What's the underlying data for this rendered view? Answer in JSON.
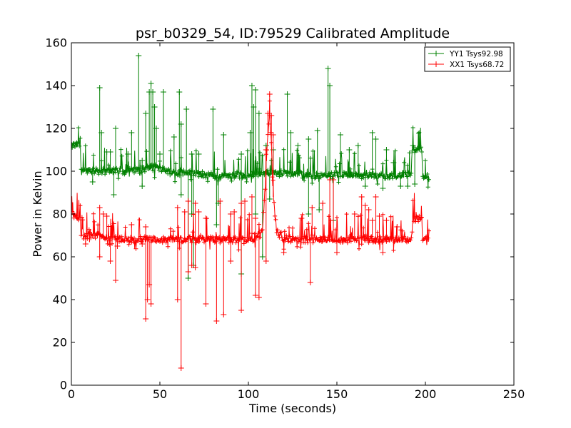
{
  "chart_data": {
    "type": "line",
    "title": "psr_b0329_54, ID:79529 Calibrated Amplitude",
    "xlabel": "Time (seconds)",
    "ylabel": "Power in Kelvin",
    "xlim": [
      0,
      250
    ],
    "ylim": [
      0,
      160
    ],
    "xticks": [
      "0",
      "50",
      "100",
      "150",
      "200",
      "250"
    ],
    "yticks": [
      "0",
      "20",
      "40",
      "60",
      "80",
      "100",
      "120",
      "140",
      "160"
    ],
    "grid": false,
    "legend_position": "top-right",
    "marker": "plus",
    "series": [
      {
        "name": "YY1 Tsys92.98",
        "color": "#008000",
        "baseline": [
          [
            0,
            112
          ],
          [
            5,
            112
          ],
          [
            5.5,
            101
          ],
          [
            14,
            100
          ],
          [
            20,
            100
          ],
          [
            30,
            100
          ],
          [
            40,
            101
          ],
          [
            48,
            102
          ],
          [
            55,
            100
          ],
          [
            68,
            99
          ],
          [
            80,
            98
          ],
          [
            95,
            98
          ],
          [
            110,
            99
          ],
          [
            120,
            99
          ],
          [
            135,
            98
          ],
          [
            150,
            98
          ],
          [
            165,
            98
          ],
          [
            180,
            98
          ],
          [
            192,
            98
          ],
          [
            192.5,
            110
          ],
          [
            198,
            110
          ],
          [
            198.5,
            98
          ],
          [
            202,
            97
          ]
        ],
        "spikes": [
          [
            16,
            139
          ],
          [
            17,
            118
          ],
          [
            20,
            109
          ],
          [
            22,
            109
          ],
          [
            25,
            120
          ],
          [
            32,
            108
          ],
          [
            34,
            118
          ],
          [
            38,
            154
          ],
          [
            40,
            105
          ],
          [
            42,
            127
          ],
          [
            44,
            137
          ],
          [
            45,
            141
          ],
          [
            46,
            137
          ],
          [
            47,
            130
          ],
          [
            48,
            120
          ],
          [
            50,
            108
          ],
          [
            52,
            137
          ],
          [
            58,
            116
          ],
          [
            61,
            137
          ],
          [
            62,
            122
          ],
          [
            65,
            129
          ],
          [
            68,
            108
          ],
          [
            72,
            108
          ],
          [
            80,
            129
          ],
          [
            86,
            117
          ],
          [
            96,
            108
          ],
          [
            101,
            118
          ],
          [
            102,
            140
          ],
          [
            103,
            130
          ],
          [
            104,
            138
          ],
          [
            106,
            127
          ],
          [
            110,
            112
          ],
          [
            114,
            110
          ],
          [
            122,
            136
          ],
          [
            124,
            118
          ],
          [
            128,
            112
          ],
          [
            134,
            115
          ],
          [
            139,
            119
          ],
          [
            145,
            148
          ],
          [
            146,
            140
          ],
          [
            152,
            117
          ],
          [
            157,
            110
          ],
          [
            162,
            112
          ],
          [
            170,
            118
          ],
          [
            172,
            115
          ],
          [
            178,
            110
          ],
          [
            182,
            104
          ],
          [
            193,
            112
          ]
        ],
        "dips": [
          [
            12,
            95
          ],
          [
            24,
            89
          ],
          [
            40,
            93
          ],
          [
            62,
            89
          ],
          [
            66,
            50
          ],
          [
            68,
            80
          ],
          [
            69,
            56
          ],
          [
            82,
            75
          ],
          [
            83,
            85
          ],
          [
            96,
            52
          ],
          [
            104,
            80
          ],
          [
            108,
            60
          ],
          [
            112,
            87
          ],
          [
            134,
            80
          ],
          [
            140,
            82
          ],
          [
            148,
            77
          ],
          [
            166,
            93
          ],
          [
            176,
            92
          ],
          [
            186,
            93
          ],
          [
            190,
            93
          ],
          [
            194,
            94
          ]
        ]
      },
      {
        "name": "XX1 Tsys68.72",
        "color": "#ff0000",
        "baseline": [
          [
            0,
            80
          ],
          [
            4,
            78
          ],
          [
            5,
            78
          ],
          [
            5.5,
            69
          ],
          [
            10,
            70
          ],
          [
            20,
            69
          ],
          [
            30,
            68
          ],
          [
            40,
            68
          ],
          [
            50,
            68
          ],
          [
            60,
            68
          ],
          [
            70,
            68
          ],
          [
            80,
            68
          ],
          [
            90,
            68
          ],
          [
            100,
            68
          ],
          [
            105,
            69
          ],
          [
            108,
            72
          ],
          [
            110,
            100
          ],
          [
            111,
            118
          ],
          [
            112,
            125
          ],
          [
            113,
            112
          ],
          [
            114,
            88
          ],
          [
            116,
            72
          ],
          [
            120,
            68
          ],
          [
            130,
            68
          ],
          [
            140,
            68
          ],
          [
            150,
            68
          ],
          [
            160,
            68
          ],
          [
            170,
            68
          ],
          [
            180,
            68
          ],
          [
            192,
            68
          ],
          [
            193,
            78
          ],
          [
            198,
            78
          ],
          [
            198.5,
            68
          ],
          [
            202,
            68
          ]
        ],
        "spikes": [
          [
            16,
            83
          ],
          [
            18,
            80
          ],
          [
            20,
            79
          ],
          [
            34,
            75
          ],
          [
            42,
            74
          ],
          [
            60,
            83
          ],
          [
            64,
            81
          ],
          [
            66,
            86
          ],
          [
            70,
            85
          ],
          [
            72,
            81
          ],
          [
            76,
            78
          ],
          [
            84,
            86
          ],
          [
            90,
            80
          ],
          [
            92,
            81
          ],
          [
            96,
            85
          ],
          [
            98,
            86
          ],
          [
            102,
            88
          ],
          [
            104,
            78
          ],
          [
            110,
            110
          ],
          [
            111,
            127
          ],
          [
            112,
            136
          ],
          [
            113,
            126
          ],
          [
            114,
            117
          ],
          [
            130,
            78
          ],
          [
            136,
            83
          ],
          [
            142,
            85
          ],
          [
            146,
            96
          ],
          [
            148,
            96
          ],
          [
            160,
            80
          ],
          [
            164,
            88
          ],
          [
            166,
            84
          ],
          [
            168,
            82
          ],
          [
            170,
            77
          ],
          [
            172,
            88
          ],
          [
            174,
            79
          ],
          [
            178,
            77
          ],
          [
            184,
            74
          ]
        ],
        "dips": [
          [
            8,
            66
          ],
          [
            16,
            60
          ],
          [
            22,
            58
          ],
          [
            25,
            49
          ],
          [
            26,
            65
          ],
          [
            40,
            66
          ],
          [
            42,
            31
          ],
          [
            43,
            40
          ],
          [
            44,
            47
          ],
          [
            45,
            38
          ],
          [
            60,
            40
          ],
          [
            62,
            8
          ],
          [
            66,
            53
          ],
          [
            68,
            56
          ],
          [
            70,
            55
          ],
          [
            76,
            38
          ],
          [
            82,
            30
          ],
          [
            86,
            33
          ],
          [
            90,
            58
          ],
          [
            96,
            35
          ],
          [
            104,
            42
          ],
          [
            106,
            41
          ],
          [
            110,
            58
          ],
          [
            120,
            62
          ],
          [
            135,
            48
          ],
          [
            150,
            62
          ],
          [
            176,
            62
          ]
        ]
      }
    ]
  }
}
